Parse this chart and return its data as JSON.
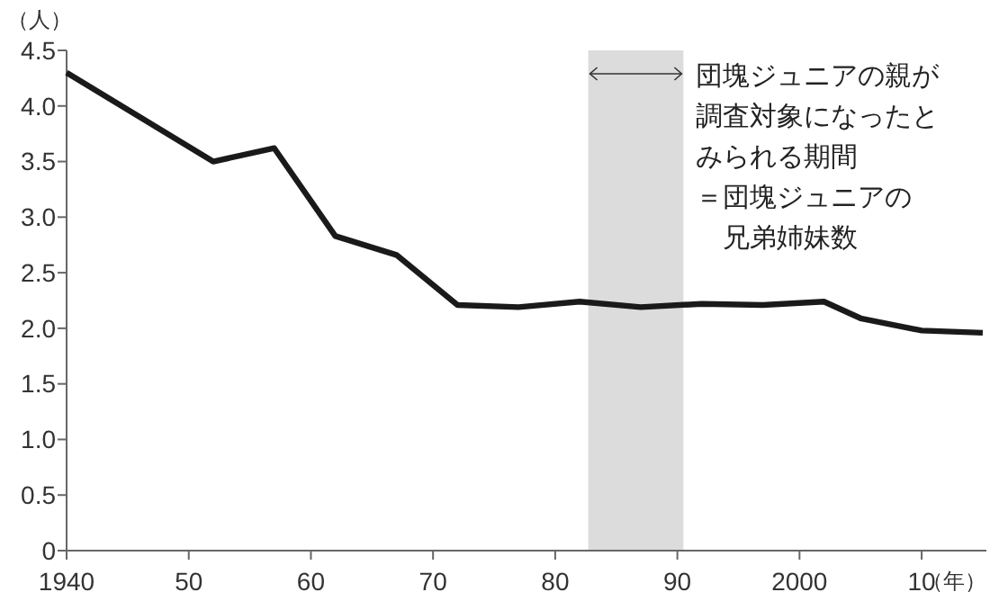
{
  "chart_data": {
    "type": "line",
    "ylabel": "（人）",
    "xlabel": "（年）",
    "x": [
      1940,
      1952,
      1957,
      1962,
      1967,
      1972,
      1977,
      1982,
      1987,
      1992,
      1997,
      2002,
      2005,
      2010,
      2015
    ],
    "series": [
      {
        "color": "#1a1a1a",
        "values": [
          4.3,
          3.5,
          3.62,
          2.83,
          2.66,
          2.21,
          2.19,
          2.24,
          2.19,
          2.22,
          2.21,
          2.24,
          2.09,
          1.98,
          1.96
        ]
      }
    ],
    "xlim": [
      1940,
      2015.3
    ],
    "xticks": [
      1940,
      {
        "value": 1950,
        "label": "50"
      },
      {
        "value": 1960,
        "label": "60"
      },
      {
        "value": 1970,
        "label": "70"
      },
      {
        "value": 1980,
        "label": "80"
      },
      {
        "value": 1990,
        "label": "90"
      },
      2000,
      {
        "value": 2010,
        "label": "10"
      }
    ],
    "ylim": [
      0,
      4.5
    ],
    "yticks": [
      0,
      {
        "value": 0.5,
        "label": "0.5"
      },
      {
        "value": 1,
        "label": "1.0"
      },
      {
        "value": 1.5,
        "label": "1.5"
      },
      {
        "value": 2,
        "label": "2.0"
      },
      {
        "value": 2.5,
        "label": "2.5"
      },
      {
        "value": 3,
        "label": "3.0"
      },
      {
        "value": 3.5,
        "label": "3.5"
      },
      {
        "value": 4,
        "label": "4.0"
      },
      {
        "value": 4.5,
        "label": "4.5"
      }
    ],
    "bands": [
      {
        "axis": "x",
        "from": 1982.7,
        "to": 1990.5,
        "color": "#dcdcdc",
        "label": "団塊ジュニアの親が調査対象になったとみられる期間"
      }
    ],
    "annotations": [
      "＝団塊ジュニアの兄弟姉妹数"
    ],
    "grid": false,
    "marker": "none",
    "line_style": "solid"
  }
}
